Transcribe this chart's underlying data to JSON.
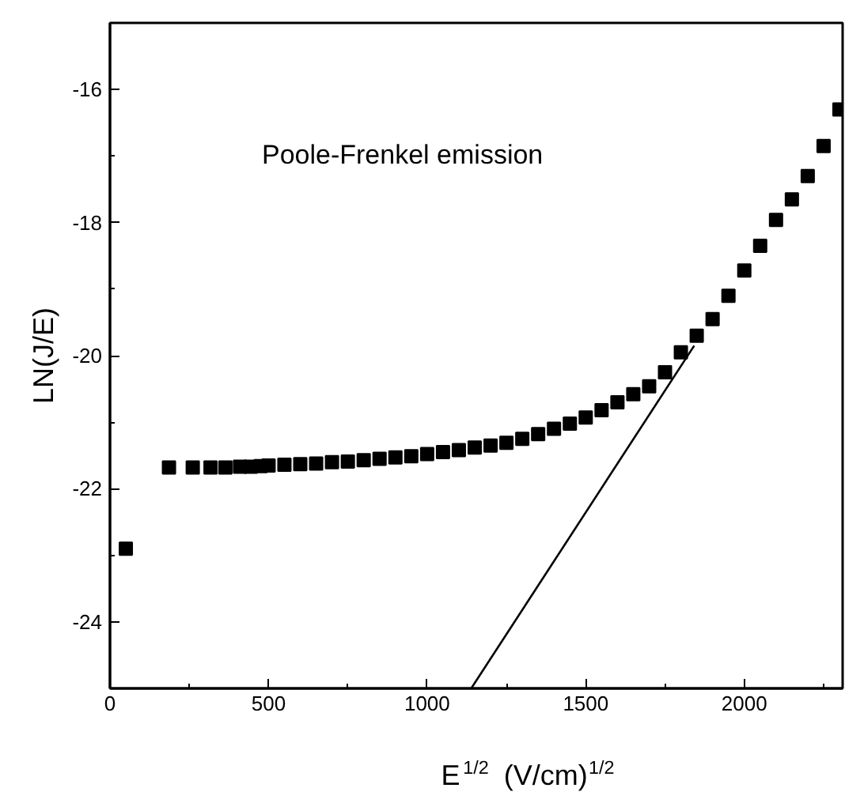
{
  "chart_data": {
    "type": "scatter",
    "xlabel": "E$^{1/2}$ (V/cm)$^{1/2}$",
    "ylabel": "LN(J/E)",
    "annotations": [
      "Poole-Frenkel emission"
    ],
    "xlim": [
      0,
      2310
    ],
    "ylim": [
      -25,
      -15
    ],
    "xticks": [
      0,
      500,
      1000,
      1500,
      2000
    ],
    "yticks": [
      -24,
      -22,
      -20,
      -18,
      -16
    ],
    "grid": false,
    "series": [
      {
        "marker": "square",
        "color": "#000000",
        "x": [
          50,
          186,
          261,
          317,
          364,
          410,
          444,
          475,
          500,
          550,
          600,
          650,
          700,
          750,
          800,
          850,
          900,
          950,
          1000,
          1050,
          1100,
          1150,
          1200,
          1250,
          1300,
          1350,
          1400,
          1450,
          1500,
          1550,
          1600,
          1650,
          1700,
          1750,
          1800,
          1850,
          1900,
          1950,
          2000,
          2050,
          2100,
          2150,
          2200,
          2250,
          2300
        ],
        "values": [
          -22.9,
          -21.68,
          -21.68,
          -21.68,
          -21.68,
          -21.67,
          -21.67,
          -21.66,
          -21.65,
          -21.64,
          -21.63,
          -21.62,
          -21.6,
          -21.59,
          -21.57,
          -21.55,
          -21.53,
          -21.51,
          -21.48,
          -21.45,
          -21.42,
          -21.38,
          -21.35,
          -21.31,
          -21.25,
          -21.18,
          -21.1,
          -21.02,
          -20.93,
          -20.82,
          -20.7,
          -20.58,
          -20.46,
          -20.25,
          -19.95,
          -19.7,
          -19.45,
          -19.1,
          -18.72,
          -18.35,
          -17.96,
          -17.65,
          -17.3,
          -16.85,
          -16.3
        ]
      },
      {
        "type": "line",
        "color": "#000000",
        "line_style": "solid",
        "x": [
          1139,
          1842
        ],
        "values": [
          -25,
          -19.85
        ]
      }
    ]
  }
}
